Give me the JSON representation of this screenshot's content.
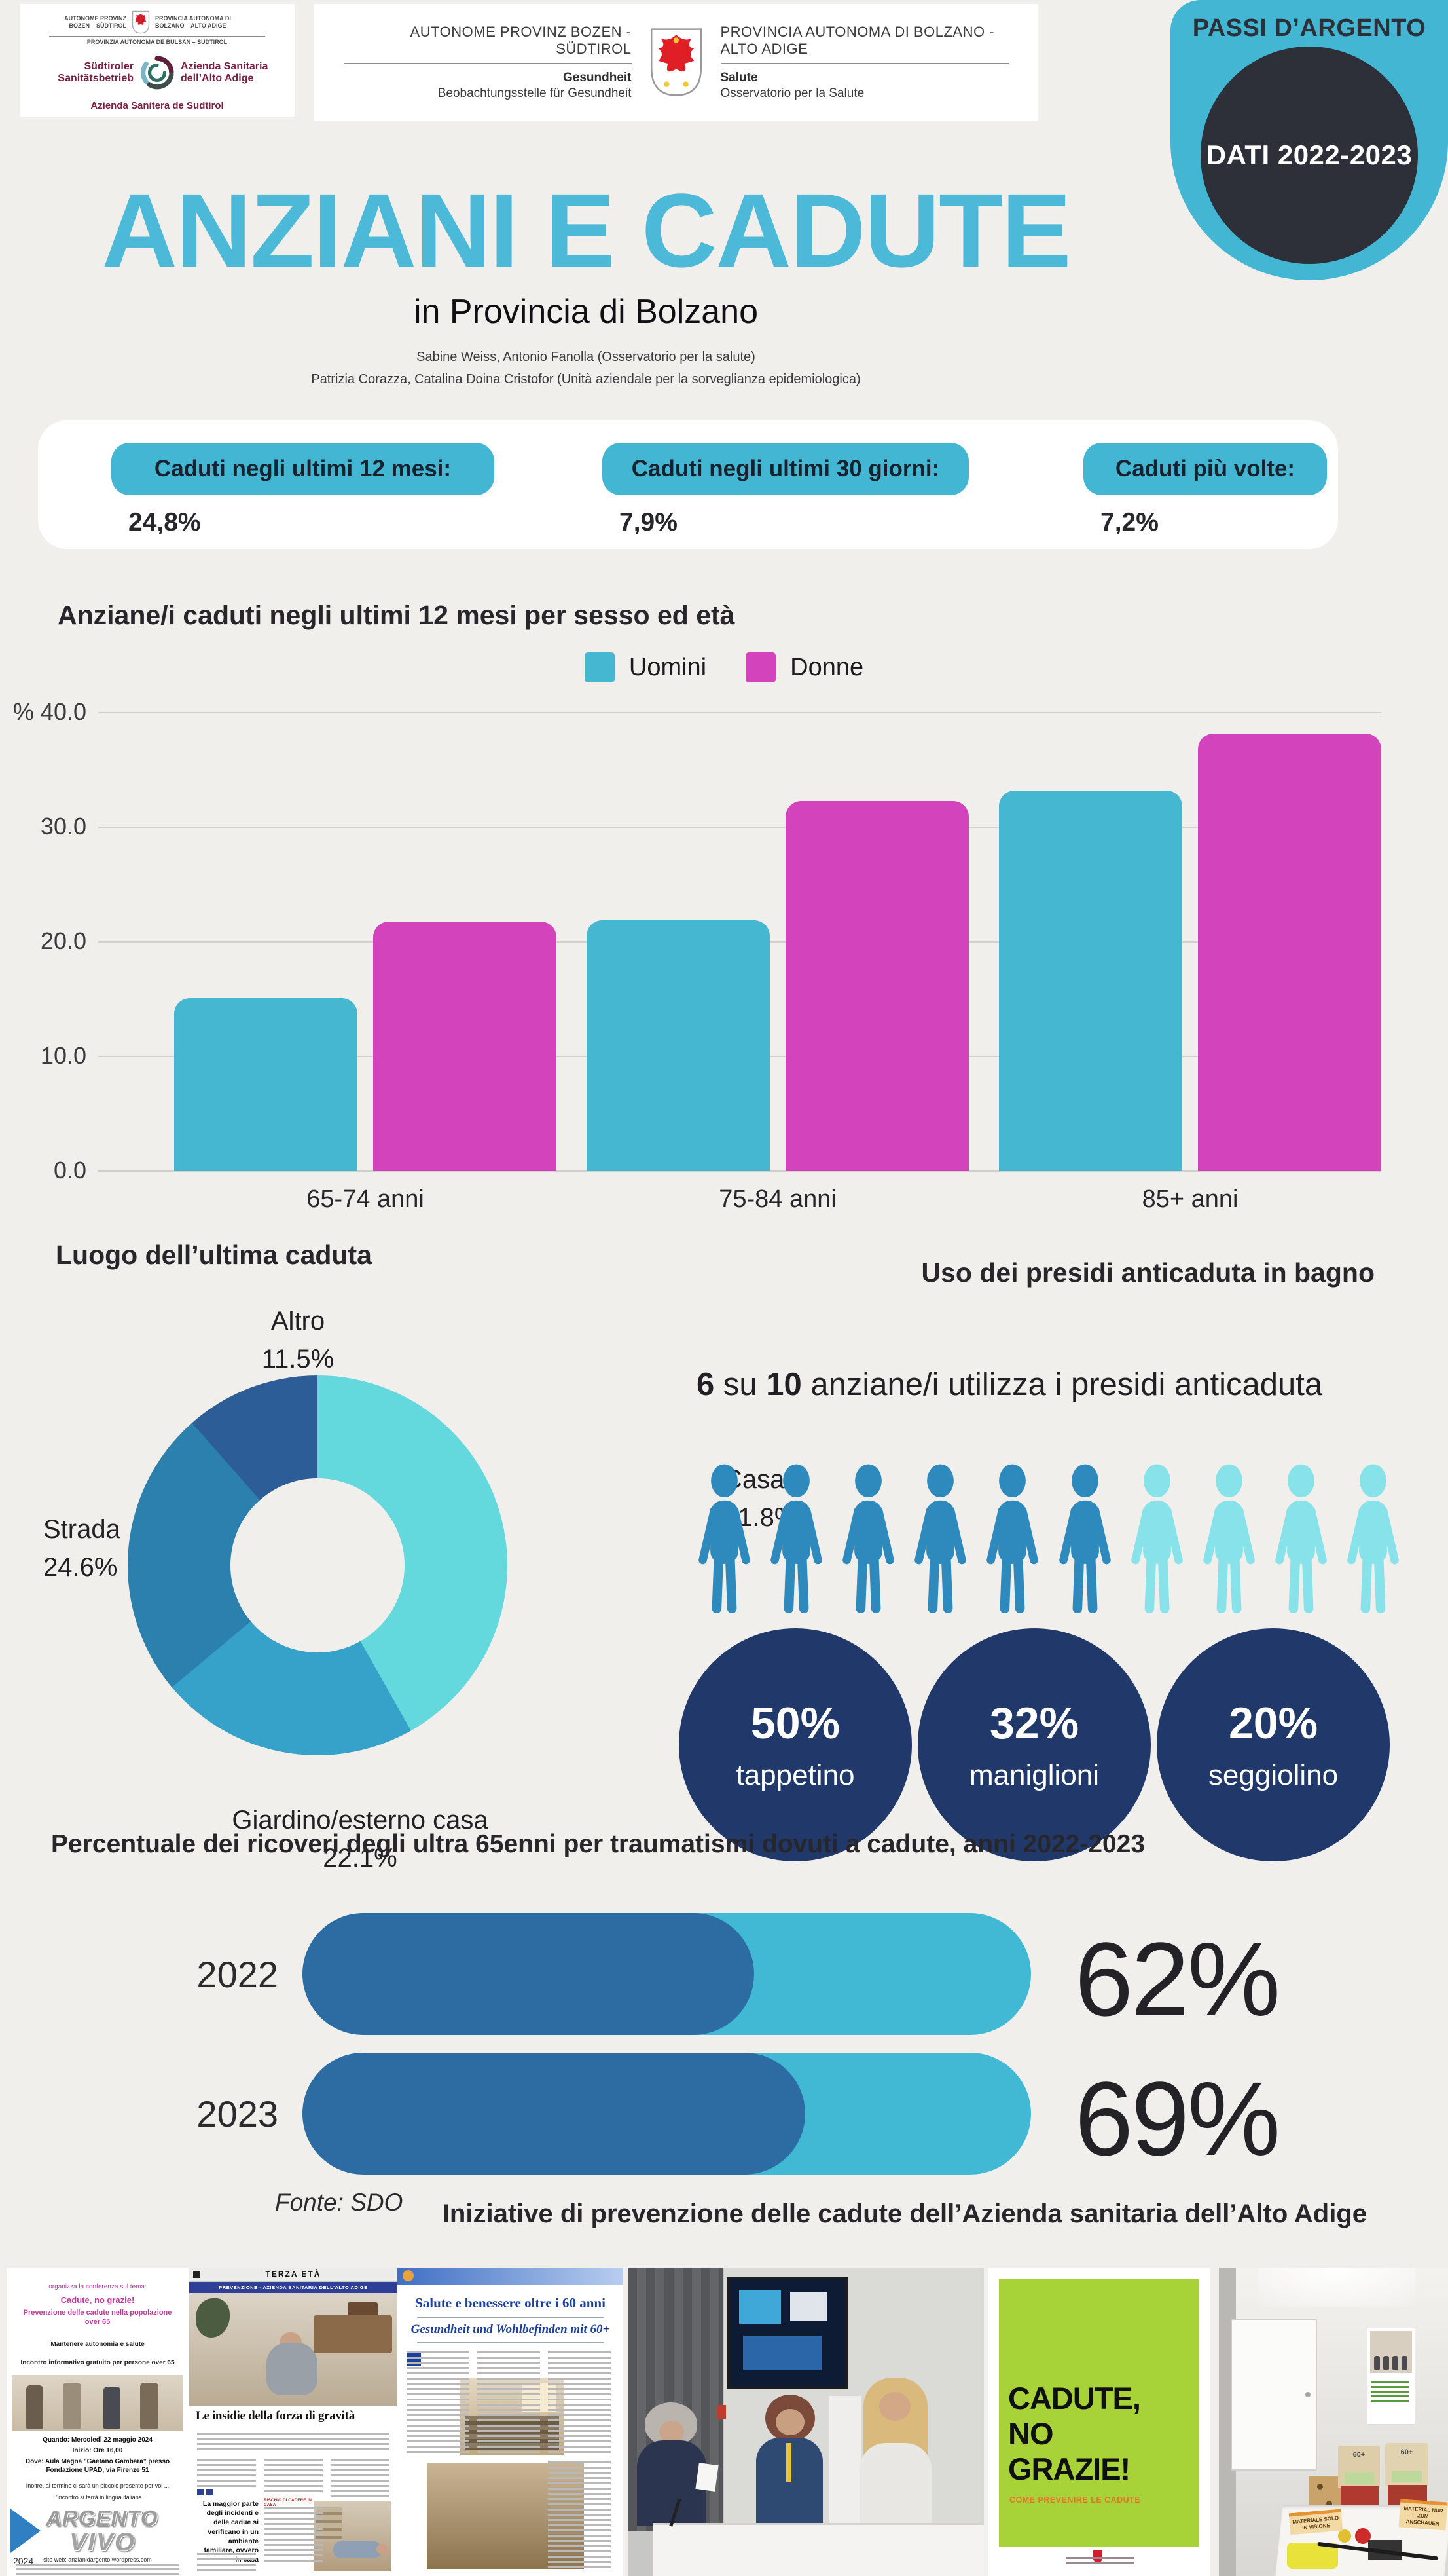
{
  "colors": {
    "background": "#f0efec",
    "accent_teal": "#42b6d2",
    "magenta": "#d243bc",
    "navy_circle": "#20386a",
    "hbar_fill": "#2d6ba3",
    "hbar_track": "#41b9d4",
    "badge_dark": "#2e3039",
    "person_active": "#2e8abc",
    "person_inactive": "#87e3e9"
  },
  "header": {
    "logo_small": {
      "prov_left": "AUTONOME PROVINZ BOZEN – SÜDTIROL",
      "prov_right": "PROVINCIA AUTONOMA DI BOLZANO – ALTO ADIGE",
      "prov_ladin": "PROVINZIA AUTONOMA DE BULSAN – SUDTIROL",
      "sb_de": "Südtiroler Sanitätsbetrieb",
      "sb_it": "Azienda Sanitaria dell’Alto Adige",
      "sb_lad": "Azienda Sanitera de Sudtirol"
    },
    "logo_wide": {
      "title_de": "AUTONOME PROVINZ BOZEN - SÜDTIROL",
      "title_it": "PROVINCIA AUTONOMA DI BOLZANO - ALTO ADIGE",
      "dept_de_bold": "Gesundheit",
      "dept_de": "Beobachtungsstelle für Gesundheit",
      "dept_it_bold": "Salute",
      "dept_it": "Osservatorio per la Salute"
    },
    "badge": {
      "title": "PASSI D’ARGENTO",
      "circle_text": "DATI 2022-2023"
    }
  },
  "title_block": {
    "title": "ANZIANI E CADUTE",
    "subtitle": "in Provincia di Bolzano",
    "authors_line1": "Sabine Weiss, Antonio Fanolla (Osservatorio per la salute)",
    "authors_line2": "Patrizia Corazza, Catalina Doina Cristofor (Unità aziendale per la sorveglianza epidemiologica)"
  },
  "stats": {
    "items": [
      {
        "label": "Caduti negli ultimi 12 mesi:",
        "value": "24,8%"
      },
      {
        "label": "Caduti negli ultimi 30 giorni:",
        "value": "7,9%"
      },
      {
        "label": "Caduti più volte:",
        "value": "7,2%"
      }
    ]
  },
  "chart_data": [
    {
      "type": "bar",
      "title": "Anziane/i caduti negli ultimi 12 mesi per sesso ed età",
      "categories": [
        "65-74 anni",
        "75-84 anni",
        "85+ anni"
      ],
      "series": [
        {
          "name": "Uomini",
          "color": "#45b7d0",
          "values": [
            15.1,
            21.9,
            33.2
          ]
        },
        {
          "name": "Donne",
          "color": "#d243bc",
          "values": [
            21.8,
            32.3,
            38.2
          ]
        }
      ],
      "ylim": [
        0,
        40
      ],
      "yticks": [
        "0.0",
        "10.0",
        "20.0",
        "30.0",
        "40.0"
      ],
      "y_prefix": "%",
      "grid": true,
      "legend_position": "top"
    },
    {
      "type": "pie",
      "donut": true,
      "title": "Luogo dell’ultima caduta",
      "start": "top",
      "direction": "clockwise",
      "slices": [
        {
          "label": "Casa",
          "pct": "41.8%",
          "value": 41.8,
          "color": "#63d8dd"
        },
        {
          "label": "Giardino/esterno casa",
          "pct": "22.1%",
          "value": 22.1,
          "color": "#36a1c9"
        },
        {
          "label": "Strada",
          "pct": "24.6%",
          "value": 24.6,
          "color": "#2b80ae"
        },
        {
          "label": "Altro",
          "pct": "11.5%",
          "value": 11.5,
          "color": "#2c5d96"
        }
      ]
    },
    {
      "type": "bar",
      "orientation": "horizontal",
      "title": "Percentuale dei ricoveri degli ultra 65enni per traumatismi dovuti a cadute, anni 2022-2023",
      "categories": [
        "2022",
        "2023"
      ],
      "values": [
        62,
        69
      ],
      "labels": [
        "62%",
        "69%"
      ],
      "xlim": [
        0,
        100
      ],
      "fill_color": "#2d6ba3",
      "track_color": "#41b9d4",
      "source": "Fonte: SDO"
    }
  ],
  "presidi": {
    "title": "Uso dei presidi anticaduta in bagno",
    "sentence": {
      "n1": "6",
      "s1": " su ",
      "n2": "10",
      "s2": " anziane/i utilizza i presidi anticaduta"
    },
    "icons": {
      "total": 10,
      "active": 6,
      "active_color": "#2e8abc",
      "inactive_color": "#87e3e9"
    },
    "stats": [
      {
        "value": "50%",
        "label": "tappetino"
      },
      {
        "value": "32%",
        "label": "maniglioni"
      },
      {
        "value": "20%",
        "label": "seggiolino"
      }
    ]
  },
  "iniziative": {
    "heading": "Iniziative di prevenzione delle cadute dell’Azienda sanitaria dell’Alto Adige",
    "strip": {
      "flyer": {
        "l1": "organizza la conferenza  sul tema:",
        "l2": "Cadute, no grazie!",
        "l3": "Prevenzione delle cadute nella popolazione over 65",
        "l4": "Mantenere autonomia e salute",
        "l5": "Incontro informativo gratuito per persone over 65",
        "quando": "Quando: Mercoledì 22 maggio 2024",
        "inizio": "Inizio: Ore 16,00",
        "dove": "Dove: Aula Magna \"Gaetano Gambara\" presso Fondazione UPAD, via Firenze 51",
        "note1": "Inoltre, al termine ci sarà un piccolo presente per voi  ...",
        "note2": "L’incontro si terrà in lingua italiana",
        "logo1": "ARGENTO",
        "logo2": "VIVO",
        "year": "2024",
        "web": "sito web:  anzianidargento.wordpress.com"
      },
      "news1": {
        "masthead": "TERZA ETÀ",
        "band": "PREVENZIONE - AZIENDA SANITARIA DELL'ALTO ADIGE",
        "headline": "Le insidie della forza di gravità",
        "quote": "La maggior parte degli incidenti e delle cadue si verificano in un ambiente familiare, ovvero in casa",
        "section": "RISCHIO DI CADERE IN CASA"
      },
      "news2": {
        "headline_it": "Salute e benessere oltre i 60 anni",
        "headline_de": "Gesundheit und Wohlbefinden mit 60+"
      },
      "poster_green": {
        "l1": "CADUTE,",
        "l2": "NO",
        "l3": "GRAZIE!",
        "sub": "COME PREVENIRE LE CADUTE"
      },
      "room": {
        "sign1": "MATERIALE SOLO IN VISIONE",
        "sign2": "MATERIAL NUR ZUM ANSCHAUEN",
        "bag": "60+"
      }
    }
  }
}
